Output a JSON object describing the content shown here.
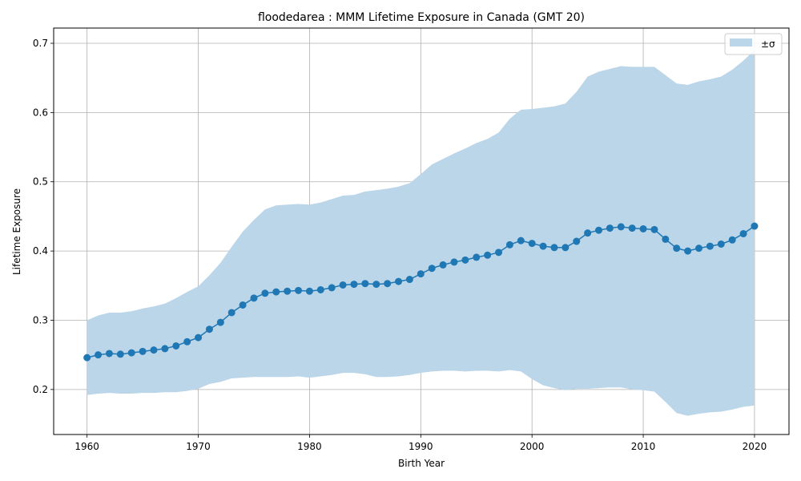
{
  "chart_data": {
    "type": "line",
    "title": "floodedarea : MMM Lifetime Exposure in Canada (GMT 20)",
    "xlabel": "Birth Year",
    "ylabel": "Lifetime Exposure",
    "xlim": [
      1957,
      2023.1
    ],
    "ylim": [
      0.135,
      0.722
    ],
    "xticks": [
      1960,
      1970,
      1980,
      1990,
      2000,
      2010,
      2020
    ],
    "xtick_labels": [
      "1960",
      "1970",
      "1980",
      "1990",
      "2000",
      "2010",
      "2020"
    ],
    "yticks": [
      0.2,
      0.3,
      0.4,
      0.5,
      0.6,
      0.7
    ],
    "ytick_labels": [
      "0.2",
      "0.3",
      "0.4",
      "0.5",
      "0.6",
      "0.7"
    ],
    "grid": true,
    "legend": {
      "position": "top-right",
      "entries": [
        "±σ"
      ]
    },
    "colors": {
      "line": "#1f77b4",
      "band": "#bcd6e9"
    },
    "x": [
      1960,
      1961,
      1962,
      1963,
      1964,
      1965,
      1966,
      1967,
      1968,
      1969,
      1970,
      1971,
      1972,
      1973,
      1974,
      1975,
      1976,
      1977,
      1978,
      1979,
      1980,
      1981,
      1982,
      1983,
      1984,
      1985,
      1986,
      1987,
      1988,
      1989,
      1990,
      1991,
      1992,
      1993,
      1994,
      1995,
      1996,
      1997,
      1998,
      1999,
      2000,
      2001,
      2002,
      2003,
      2004,
      2005,
      2006,
      2007,
      2008,
      2009,
      2010,
      2011,
      2012,
      2013,
      2014,
      2015,
      2016,
      2017,
      2018,
      2019,
      2020
    ],
    "series": [
      {
        "values": [
          0.246,
          0.25,
          0.252,
          0.251,
          0.253,
          0.255,
          0.257,
          0.259,
          0.263,
          0.269,
          0.275,
          0.287,
          0.297,
          0.311,
          0.322,
          0.332,
          0.339,
          0.341,
          0.342,
          0.343,
          0.342,
          0.344,
          0.347,
          0.351,
          0.352,
          0.353,
          0.352,
          0.353,
          0.356,
          0.359,
          0.367,
          0.375,
          0.38,
          0.384,
          0.387,
          0.391,
          0.394,
          0.398,
          0.409,
          0.415,
          0.411,
          0.407,
          0.405,
          0.405,
          0.414,
          0.426,
          0.43,
          0.433,
          0.435,
          0.433,
          0.432,
          0.431,
          0.417,
          0.404,
          0.4,
          0.404,
          0.407,
          0.41,
          0.416,
          0.425,
          0.436
        ]
      }
    ],
    "band": {
      "name": "±σ",
      "upper": [
        0.3,
        0.307,
        0.311,
        0.311,
        0.313,
        0.317,
        0.32,
        0.324,
        0.332,
        0.341,
        0.349,
        0.365,
        0.383,
        0.406,
        0.428,
        0.445,
        0.46,
        0.466,
        0.467,
        0.468,
        0.467,
        0.47,
        0.475,
        0.48,
        0.481,
        0.486,
        0.488,
        0.49,
        0.493,
        0.498,
        0.511,
        0.525,
        0.533,
        0.541,
        0.548,
        0.556,
        0.562,
        0.571,
        0.591,
        0.604,
        0.605,
        0.607,
        0.609,
        0.613,
        0.63,
        0.652,
        0.659,
        0.663,
        0.667,
        0.666,
        0.666,
        0.666,
        0.654,
        0.642,
        0.64,
        0.645,
        0.648,
        0.652,
        0.662,
        0.675,
        0.69
      ],
      "lower": [
        0.192,
        0.194,
        0.195,
        0.194,
        0.194,
        0.195,
        0.195,
        0.196,
        0.196,
        0.198,
        0.201,
        0.208,
        0.211,
        0.216,
        0.217,
        0.218,
        0.218,
        0.218,
        0.218,
        0.219,
        0.217,
        0.219,
        0.221,
        0.224,
        0.224,
        0.222,
        0.218,
        0.218,
        0.219,
        0.221,
        0.224,
        0.226,
        0.227,
        0.227,
        0.226,
        0.227,
        0.227,
        0.226,
        0.228,
        0.226,
        0.215,
        0.206,
        0.202,
        0.199,
        0.201,
        0.201,
        0.202,
        0.203,
        0.203,
        0.2,
        0.199,
        0.197,
        0.182,
        0.166,
        0.162,
        0.165,
        0.167,
        0.168,
        0.171,
        0.175,
        0.177
      ]
    }
  }
}
